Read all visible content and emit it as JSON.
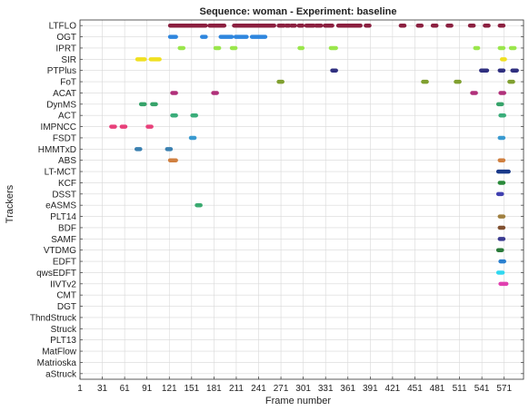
{
  "chart_data": {
    "type": "scatter",
    "title": "Sequence: woman - Experiment: baseline",
    "xlabel": "Frame number",
    "ylabel": "Trackers",
    "xlim": [
      1,
      597
    ],
    "xticks": [
      1,
      31,
      61,
      91,
      121,
      151,
      181,
      211,
      241,
      271,
      301,
      331,
      361,
      391,
      421,
      451,
      481,
      511,
      541,
      571
    ],
    "grid": true,
    "trackers": [
      "LTFLO",
      "OGT",
      "IPRT",
      "SIR",
      "PTPlus",
      "FoT",
      "ACAT",
      "DynMS",
      "ACT",
      "IMPNCC",
      "FSDT",
      "HMMTxD",
      "ABS",
      "LT-MCT",
      "KCF",
      "DSST",
      "eASMS",
      "PLT14",
      "BDF",
      "SAMF",
      "VTDMG",
      "EDFT",
      "qwsEDFT",
      "IIVTv2",
      "CMT",
      "DGT",
      "ThndStruck",
      "Struck",
      "PLT13",
      "MatFlow",
      "Matrioska",
      "aStruck"
    ],
    "series": [
      {
        "tracker": "LTFLO",
        "color": "#8b2040",
        "segments": [
          [
            122,
            170
          ],
          [
            175,
            195
          ],
          [
            208,
            262
          ],
          [
            268,
            275
          ],
          [
            278,
            282
          ],
          [
            285,
            290
          ],
          [
            295,
            300
          ],
          [
            305,
            315
          ],
          [
            318,
            325
          ],
          [
            330,
            340
          ],
          [
            348,
            378
          ],
          [
            385,
            390
          ],
          [
            432,
            437
          ],
          [
            455,
            460
          ],
          [
            475,
            480
          ],
          [
            495,
            500
          ],
          [
            525,
            530
          ],
          [
            545,
            550
          ],
          [
            565,
            570
          ]
        ]
      },
      {
        "tracker": "OGT",
        "color": "#2e86de",
        "segments": [
          [
            122,
            130
          ],
          [
            165,
            170
          ],
          [
            190,
            205
          ],
          [
            210,
            225
          ],
          [
            232,
            250
          ]
        ]
      },
      {
        "tracker": "IPRT",
        "color": "#9ae64c",
        "segments": [
          [
            135,
            140
          ],
          [
            183,
            188
          ],
          [
            205,
            210
          ],
          [
            296,
            300
          ],
          [
            338,
            345
          ],
          [
            532,
            536
          ],
          [
            565,
            570
          ],
          [
            580,
            585
          ]
        ]
      },
      {
        "tracker": "SIR",
        "color": "#f0e020",
        "segments": [
          [
            78,
            88
          ],
          [
            96,
            108
          ],
          [
            568,
            572
          ]
        ]
      },
      {
        "tracker": "PTPlus",
        "color": "#303080",
        "segments": [
          [
            340,
            345
          ],
          [
            540,
            548
          ],
          [
            565,
            570
          ],
          [
            582,
            588
          ]
        ]
      },
      {
        "tracker": "FoT",
        "color": "#80a030",
        "segments": [
          [
            268,
            273
          ],
          [
            462,
            467
          ],
          [
            506,
            511
          ],
          [
            578,
            583
          ]
        ]
      },
      {
        "tracker": "ACAT",
        "color": "#b0307a",
        "segments": [
          [
            125,
            130
          ],
          [
            180,
            185
          ],
          [
            528,
            533
          ],
          [
            566,
            571
          ]
        ]
      },
      {
        "tracker": "DynMS",
        "color": "#36a36a",
        "segments": [
          [
            83,
            88
          ],
          [
            98,
            103
          ],
          [
            563,
            568
          ]
        ]
      },
      {
        "tracker": "ACT",
        "color": "#3aad7a",
        "segments": [
          [
            125,
            130
          ],
          [
            152,
            157
          ],
          [
            566,
            571
          ]
        ]
      },
      {
        "tracker": "IMPNCC",
        "color": "#e8407a",
        "segments": [
          [
            43,
            48
          ],
          [
            57,
            62
          ],
          [
            92,
            97
          ]
        ]
      },
      {
        "tracker": "FSDT",
        "color": "#3a9ad0",
        "segments": [
          [
            150,
            155
          ],
          [
            565,
            570
          ]
        ]
      },
      {
        "tracker": "HMMTxD",
        "color": "#3a80b0",
        "segments": [
          [
            77,
            82
          ],
          [
            118,
            123
          ]
        ]
      },
      {
        "tracker": "ABS",
        "color": "#d08040",
        "segments": [
          [
            122,
            130
          ],
          [
            565,
            570
          ]
        ]
      },
      {
        "tracker": "LT-MCT",
        "color": "#1a3a8a",
        "segments": [
          [
            563,
            577
          ]
        ]
      },
      {
        "tracker": "KCF",
        "color": "#2a8a3a",
        "segments": [
          [
            565,
            570
          ]
        ]
      },
      {
        "tracker": "DSST",
        "color": "#4040b0",
        "segments": [
          [
            563,
            568
          ]
        ]
      },
      {
        "tracker": "eASMS",
        "color": "#3aaa70",
        "segments": [
          [
            158,
            163
          ]
        ]
      },
      {
        "tracker": "PLT14",
        "color": "#a08040",
        "segments": [
          [
            565,
            570
          ]
        ]
      },
      {
        "tracker": "BDF",
        "color": "#805030",
        "segments": [
          [
            565,
            570
          ]
        ]
      },
      {
        "tracker": "SAMF",
        "color": "#3a3a90",
        "segments": [
          [
            565,
            570
          ]
        ]
      },
      {
        "tracker": "VTDMG",
        "color": "#2a7a3a",
        "segments": [
          [
            563,
            568
          ]
        ]
      },
      {
        "tracker": "EDFT",
        "color": "#2a80d0",
        "segments": [
          [
            566,
            571
          ]
        ]
      },
      {
        "tracker": "qwsEDFT",
        "color": "#30d8f0",
        "segments": [
          [
            563,
            569
          ]
        ]
      },
      {
        "tracker": "IIVTv2",
        "color": "#e040b0",
        "segments": [
          [
            566,
            574
          ]
        ]
      },
      {
        "tracker": "CMT",
        "color": "#666666",
        "segments": []
      },
      {
        "tracker": "DGT",
        "color": "#666666",
        "segments": []
      },
      {
        "tracker": "ThndStruck",
        "color": "#666666",
        "segments": []
      },
      {
        "tracker": "Struck",
        "color": "#666666",
        "segments": []
      },
      {
        "tracker": "PLT13",
        "color": "#666666",
        "segments": []
      },
      {
        "tracker": "MatFlow",
        "color": "#666666",
        "segments": []
      },
      {
        "tracker": "Matrioska",
        "color": "#666666",
        "segments": []
      },
      {
        "tracker": "aStruck",
        "color": "#666666",
        "segments": []
      }
    ]
  }
}
